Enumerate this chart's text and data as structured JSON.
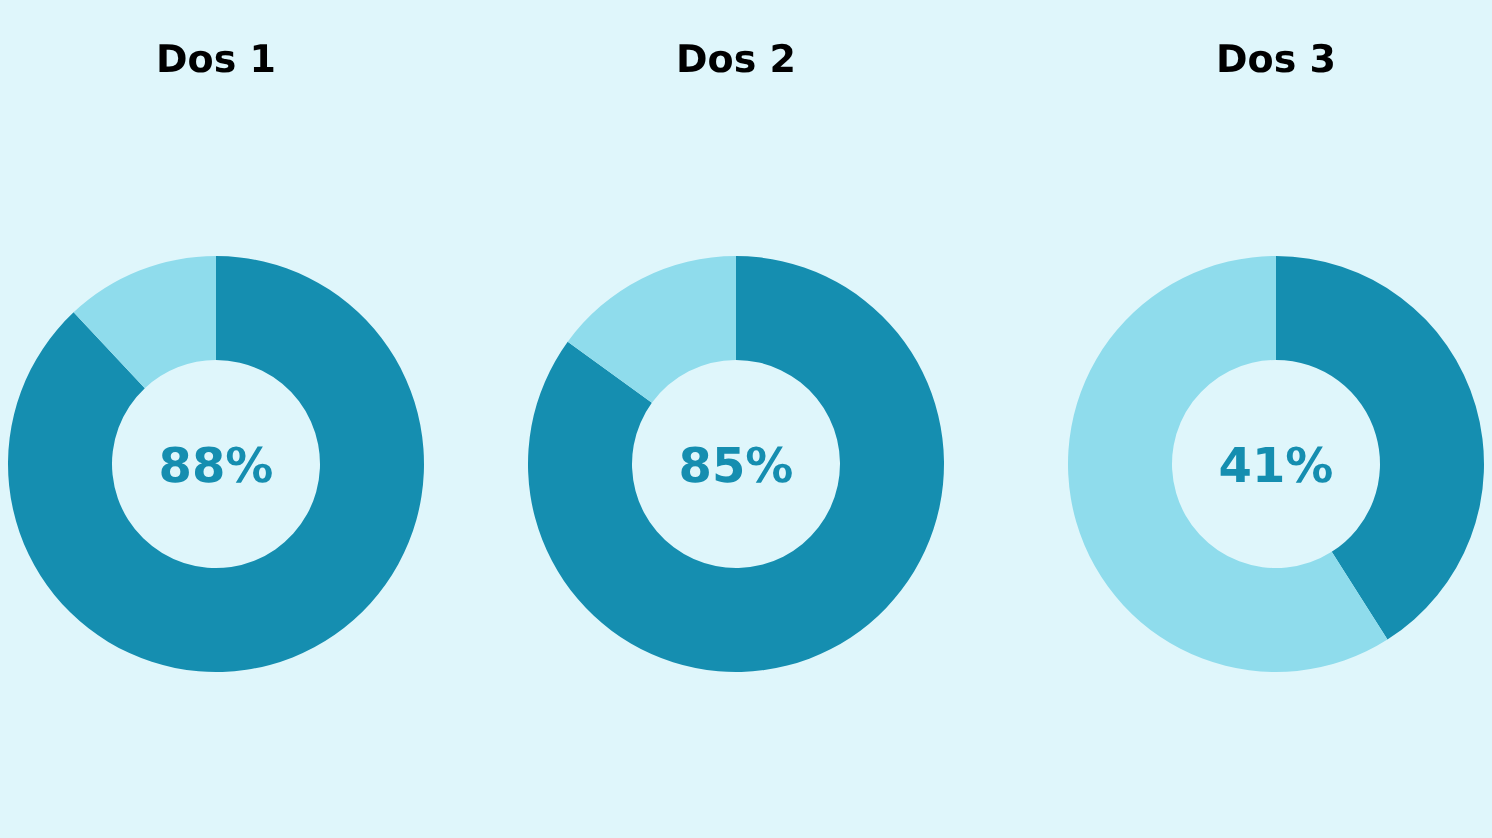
{
  "chart_data": [
    {
      "type": "donut",
      "title": "Dos 1",
      "categories": [
        null,
        null
      ],
      "values": [
        88,
        12
      ],
      "colors": [
        "#158eb0",
        "#8fdcec"
      ],
      "annotations": [
        "88%"
      ]
    },
    {
      "type": "donut",
      "title": "Dos 2",
      "categories": [
        null,
        null
      ],
      "values": [
        85,
        15
      ],
      "colors": [
        "#158eb0",
        "#8fdcec"
      ],
      "annotations": [
        "85%"
      ]
    },
    {
      "type": "donut",
      "title": "Dos 3",
      "categories": [
        null,
        null
      ],
      "values": [
        41,
        59
      ],
      "colors": [
        "#158eb0",
        "#8fdcec"
      ],
      "annotations": [
        "41%"
      ]
    }
  ]
}
